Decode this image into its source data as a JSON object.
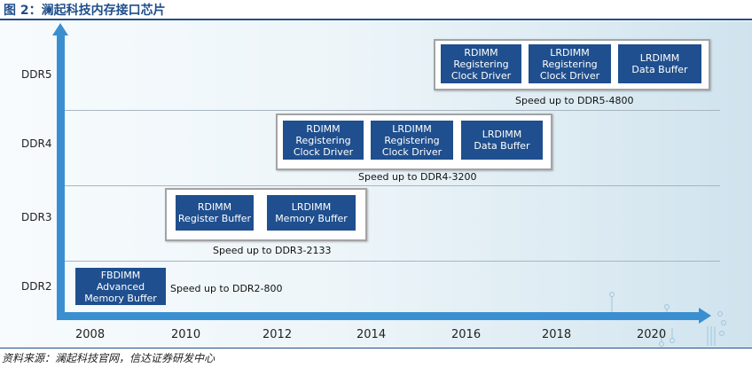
{
  "title": "图 2：澜起科技内存接口芯片",
  "source": "资料来源：澜起科技官网，信达证券研发中心",
  "y_levels": [
    "DDR5",
    "DDR4",
    "DDR3",
    "DDR2"
  ],
  "x_years": [
    "2008",
    "2010",
    "2012",
    "2014",
    "2016",
    "2018",
    "2020"
  ],
  "ddr2": {
    "chip": [
      "FBDIMM",
      "Advanced",
      "Memory Buffer"
    ],
    "speed": "Speed up to DDR2-800"
  },
  "ddr3": {
    "chips": [
      [
        "RDIMM",
        "Register Buffer"
      ],
      [
        "LRDIMM",
        "Memory Buffer"
      ]
    ],
    "speed": "Speed up to DDR3-2133"
  },
  "ddr4": {
    "chips": [
      [
        "RDIMM",
        "Registering",
        "Clock Driver"
      ],
      [
        "LRDIMM",
        "Registering",
        "Clock Driver"
      ],
      [
        "LRDIMM",
        "Data Buffer"
      ]
    ],
    "speed": "Speed up to DDR4-3200"
  },
  "ddr5": {
    "chips": [
      [
        "RDIMM",
        "Registering",
        "Clock Driver"
      ],
      [
        "LRDIMM",
        "Registering",
        "Clock Driver"
      ],
      [
        "LRDIMM",
        "Data Buffer"
      ]
    ],
    "speed": "Speed up to DDR5-4800"
  },
  "colors": {
    "axis": "#3a8fd0",
    "chip": "#1f4f8e",
    "title": "#1f4e8c"
  }
}
